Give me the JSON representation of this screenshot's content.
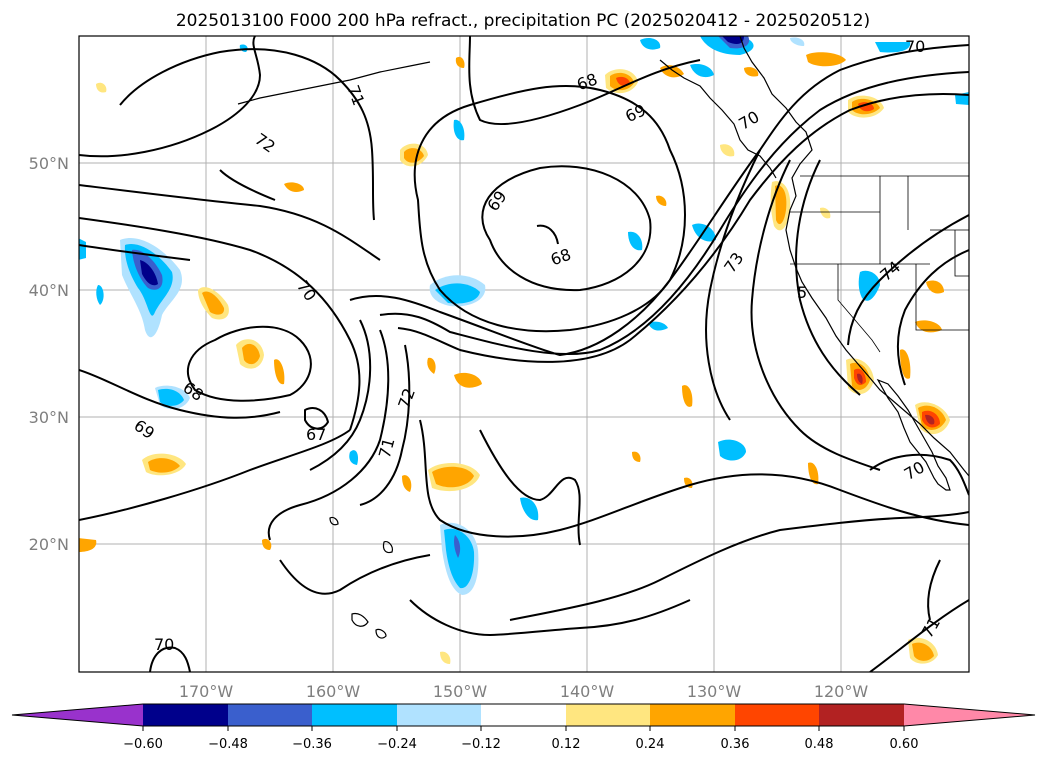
{
  "title": "2025013100 F000 200 hPa refract., precipitation PC (2025020412 - 2025020512)",
  "longitude_labels": [
    "170°W",
    "160°W",
    "150°W",
    "140°W",
    "130°W",
    "120°W"
  ],
  "latitude_labels": [
    "50°N",
    "40°N",
    "30°N",
    "20°N"
  ],
  "colorbar": {
    "ticks": [
      "−0.60",
      "−0.48",
      "−0.36",
      "−0.24",
      "−0.12",
      "0.12",
      "0.24",
      "0.36",
      "0.48",
      "0.60"
    ],
    "colors": [
      "#9932cc",
      "#00008b",
      "#3a5fcd",
      "#00bfff",
      "#b0e2ff",
      "#ffffff",
      "#ffe680",
      "#ffa500",
      "#ff4500",
      "#b22222",
      "#ff88a8"
    ]
  },
  "contour_labels": {
    "c1": "70",
    "c2": "68",
    "c3": "69",
    "c4": "71",
    "c5": "70",
    "c6": "72",
    "c7": "69",
    "c8": "68",
    "c9": "73",
    "c10": "70",
    "c11": "5",
    "c12": "74",
    "c13": "68",
    "c14": "69",
    "c15": "67",
    "c16": "72",
    "c17": "71",
    "c18": "70",
    "c19": "70",
    "c20": "71"
  }
}
